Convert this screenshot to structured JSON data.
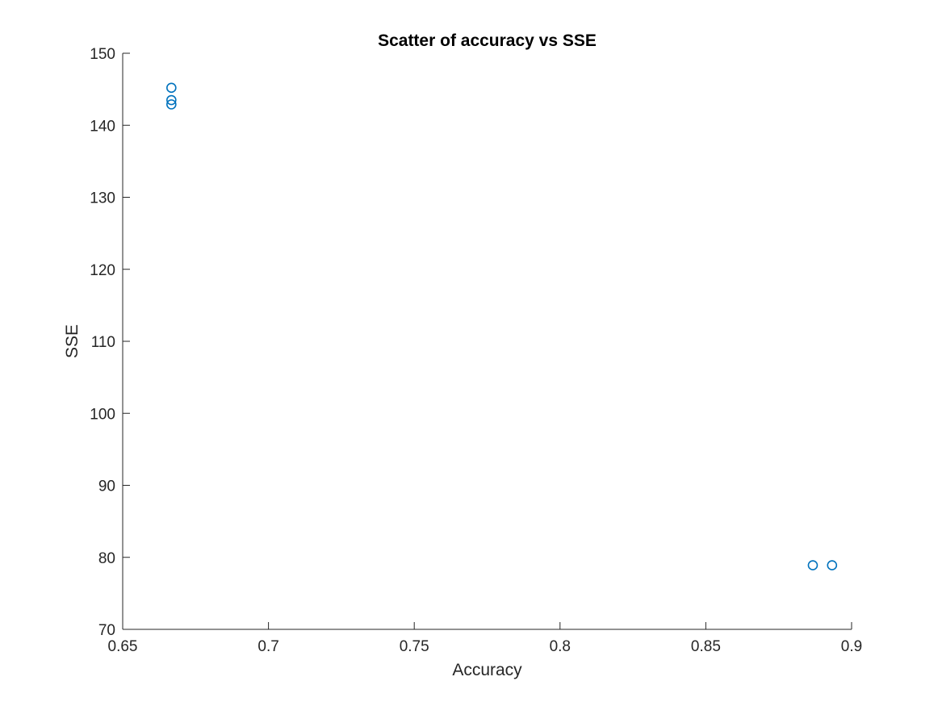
{
  "chart_data": {
    "type": "scatter",
    "title": "Scatter of accuracy vs SSE",
    "xlabel": "Accuracy",
    "ylabel": "SSE",
    "xlim": [
      0.65,
      0.9
    ],
    "ylim": [
      70,
      150
    ],
    "xticks": [
      0.65,
      0.7,
      0.75,
      0.8,
      0.85,
      0.9
    ],
    "xtick_labels": [
      "0.65",
      "0.7",
      "0.75",
      "0.8",
      "0.85",
      "0.9"
    ],
    "yticks": [
      70,
      80,
      90,
      100,
      110,
      120,
      130,
      140,
      150
    ],
    "ytick_labels": [
      "70",
      "80",
      "90",
      "100",
      "110",
      "120",
      "130",
      "140",
      "150"
    ],
    "grid": false,
    "series": [
      {
        "marker": "circle-open",
        "color": "#0072BD",
        "points": [
          {
            "x": 0.6667,
            "y": 145.2
          },
          {
            "x": 0.6667,
            "y": 143.5
          },
          {
            "x": 0.6667,
            "y": 142.9
          },
          {
            "x": 0.8867,
            "y": 78.9
          },
          {
            "x": 0.8933,
            "y": 78.9
          }
        ]
      }
    ]
  }
}
